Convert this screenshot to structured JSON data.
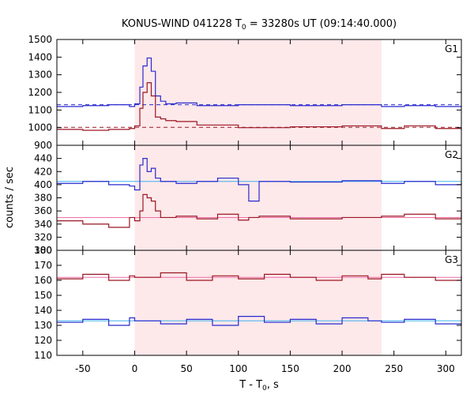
{
  "chart_data": {
    "type": "line",
    "title": "KONUS-WIND 041228 T",
    "title_sub": "0",
    "title_rest": " = 33280s UT (09:14:40.000)",
    "xlabel_main": "T - T",
    "xlabel_sub": "0",
    "xlabel_rest": ", s",
    "ylabel": "counts / sec",
    "xlim": [
      -75,
      315
    ],
    "xticks": [
      -50,
      0,
      50,
      100,
      150,
      200,
      250,
      300
    ],
    "xtick_labels": [
      "-50",
      "0",
      "50",
      "100",
      "150",
      "200",
      "250",
      "300"
    ],
    "shaded_interval": [
      0,
      238
    ],
    "colors": {
      "blue": "#2a2acf",
      "red": "#9b1622",
      "shade": "#fde8ea",
      "bg_fit_blue": "#3fb1ee",
      "bg_fit_red": "#ee6fa8",
      "bg_fit_red_g1": "#9b1622",
      "bg_fit_blue_g1": "#2a2acf"
    },
    "panels": [
      {
        "label": "G1",
        "ylim": [
          900,
          1500
        ],
        "yticks": [
          900,
          1000,
          1100,
          1200,
          1300,
          1400,
          1500
        ],
        "ytick_labels": [
          "900",
          "1000",
          "1100",
          "1200",
          "1300",
          "1400",
          "1500"
        ],
        "bg_levels": {
          "blue": 1130,
          "red": 1002
        },
        "series": [
          {
            "color": "blue",
            "x": [
              -75,
              -50,
              -25,
              -5,
              0,
              5,
              8,
              12,
              16,
              20,
              25,
              30,
              40,
              60,
              100,
              150,
              200,
              238,
              260,
              290,
              315
            ],
            "y": [
              1120,
              1125,
              1130,
              1120,
              1135,
              1230,
              1350,
              1395,
              1320,
              1180,
              1150,
              1135,
              1140,
              1125,
              1130,
              1125,
              1130,
              1120,
              1125,
              1120,
              1125
            ]
          },
          {
            "color": "red",
            "x": [
              -75,
              -50,
              -25,
              -5,
              0,
              5,
              8,
              12,
              16,
              20,
              25,
              30,
              40,
              60,
              100,
              150,
              200,
              238,
              260,
              290,
              315
            ],
            "y": [
              990,
              985,
              990,
              995,
              1010,
              1110,
              1200,
              1255,
              1180,
              1060,
              1050,
              1040,
              1035,
              1015,
              1000,
              1005,
              1010,
              995,
              1010,
              995,
              985
            ]
          }
        ]
      },
      {
        "label": "G2",
        "ylim": [
          300,
          460
        ],
        "yticks": [
          300,
          320,
          340,
          360,
          380,
          400,
          420,
          440
        ],
        "ytick_labels": [
          "300",
          "320",
          "340",
          "360",
          "380",
          "400",
          "420",
          "440"
        ],
        "bg_levels": {
          "blue": 405,
          "red": 350
        },
        "series": [
          {
            "color": "blue",
            "x": [
              -75,
              -50,
              -25,
              -5,
              0,
              5,
              8,
              12,
              16,
              20,
              25,
              40,
              60,
              80,
              100,
              110,
              120,
              150,
              200,
              238,
              260,
              290,
              315
            ],
            "y": [
              402,
              405,
              400,
              398,
              392,
              430,
              440,
              420,
              425,
              410,
              405,
              402,
              405,
              410,
              400,
              375,
              405,
              404,
              406,
              402,
              405,
              400,
              403
            ]
          },
          {
            "color": "red",
            "x": [
              -75,
              -50,
              -25,
              -5,
              0,
              5,
              8,
              12,
              16,
              20,
              25,
              40,
              60,
              80,
              100,
              110,
              120,
              150,
              200,
              238,
              260,
              290,
              315
            ],
            "y": [
              345,
              340,
              335,
              350,
              345,
              360,
              385,
              380,
              375,
              360,
              350,
              352,
              348,
              355,
              346,
              350,
              352,
              348,
              350,
              352,
              355,
              348,
              360
            ]
          }
        ]
      },
      {
        "label": "G3",
        "ylim": [
          110,
          180
        ],
        "yticks": [
          110,
          120,
          130,
          140,
          150,
          160,
          170,
          180
        ],
        "ytick_labels": [
          "110",
          "120",
          "130",
          "140",
          "150",
          "160",
          "170",
          "180"
        ],
        "bg_levels": {
          "blue": 133,
          "red": 162
        },
        "series": [
          {
            "color": "blue",
            "x": [
              -75,
              -50,
              -25,
              -5,
              0,
              25,
              50,
              75,
              100,
              125,
              150,
              175,
              200,
              225,
              238,
              260,
              290,
              315
            ],
            "y": [
              132,
              134,
              130,
              135,
              133,
              131,
              134,
              130,
              136,
              132,
              134,
              131,
              135,
              133,
              132,
              134,
              131,
              130
            ]
          },
          {
            "color": "red",
            "x": [
              -75,
              -50,
              -25,
              -5,
              0,
              25,
              50,
              75,
              100,
              125,
              150,
              175,
              200,
              225,
              238,
              260,
              290,
              315
            ],
            "y": [
              161,
              164,
              160,
              163,
              162,
              165,
              160,
              163,
              161,
              164,
              162,
              160,
              163,
              161,
              164,
              162,
              160,
              163
            ]
          }
        ]
      }
    ]
  }
}
